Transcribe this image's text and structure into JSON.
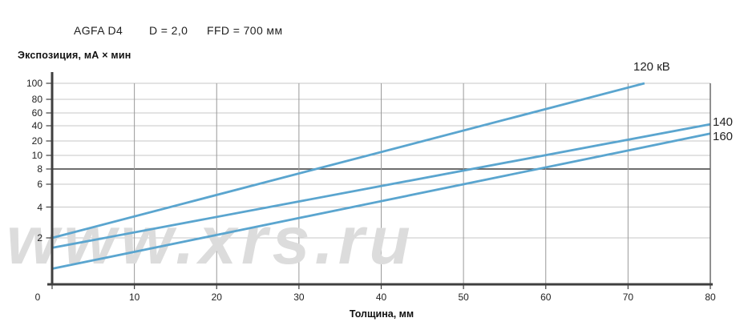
{
  "header": {
    "film": "AGFA D4",
    "density": "D = 2,0",
    "ffd": "FFD = 700 мм"
  },
  "watermark": "www.xrs.ru",
  "chart_data": {
    "type": "line",
    "title": "AGFA D4  D = 2,0  FFD = 700 мм",
    "xlabel": "Толщина, мм",
    "ylabel": "Экспозиция, мА × мин",
    "x_ticks": [
      0,
      10,
      20,
      30,
      40,
      50,
      60,
      70,
      80
    ],
    "y_ticks": [
      2,
      4,
      6,
      8,
      10,
      20,
      40,
      60,
      80,
      100
    ],
    "xlim": [
      0,
      80
    ],
    "ylim": [
      1,
      100
    ],
    "y_scale": "pseudo-log (non-uniform tick spacing: 2,4,6,8,10,20,40,60,80,100)",
    "grid": true,
    "line_color": "#5aa5cf",
    "legend_position": "line-end labels (right/top of plot)",
    "series": [
      {
        "name": "120 кВ",
        "label": "120 кВ",
        "points": [
          [
            0,
            2.0
          ],
          [
            72,
            100
          ]
        ]
      },
      {
        "name": "140 кВ",
        "label": "140",
        "points": [
          [
            0,
            1.6
          ],
          [
            80,
            42
          ]
        ]
      },
      {
        "name": "160 кВ",
        "label": "160",
        "points": [
          [
            0,
            1.0
          ],
          [
            80,
            28
          ]
        ]
      }
    ]
  }
}
